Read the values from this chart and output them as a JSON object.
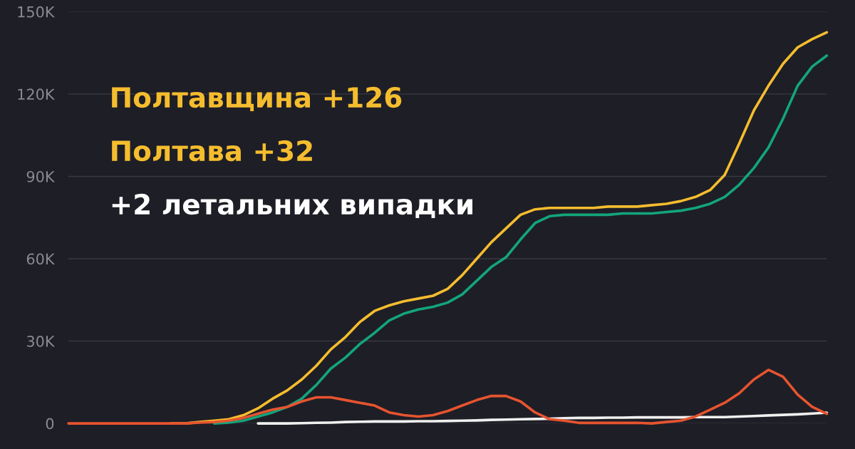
{
  "chart_data": {
    "type": "line",
    "categories": [
      null,
      null,
      null,
      null,
      null,
      null,
      null,
      null,
      null,
      null,
      null,
      null,
      null,
      null,
      null,
      null,
      null,
      null,
      null,
      null,
      null,
      null,
      null,
      null,
      null,
      null,
      null,
      null,
      null,
      null,
      null,
      null,
      null,
      null,
      null,
      null,
      null,
      null,
      null,
      null,
      null,
      null,
      null,
      null,
      null,
      null,
      null,
      null,
      null,
      null,
      null,
      null,
      null
    ],
    "series": [
      {
        "color": "#f5bd2e",
        "values": [
          null,
          null,
          null,
          null,
          null,
          null,
          null,
          0,
          0,
          500,
          1000,
          1500,
          3000,
          5500,
          9000,
          12000,
          16000,
          21000,
          27000,
          31500,
          37000,
          41000,
          43000,
          44500,
          45500,
          46500,
          49000,
          54000,
          60000,
          66000,
          71000,
          76000,
          78000,
          78500,
          78500,
          78500,
          78500,
          79000,
          79000,
          79000,
          79500,
          80000,
          81000,
          82500,
          85000,
          90500,
          102000,
          114000,
          123000,
          131000,
          137000,
          140000,
          142500
        ]
      },
      {
        "color": "#13a57c",
        "values": [
          null,
          null,
          null,
          null,
          null,
          null,
          null,
          null,
          null,
          null,
          0,
          300,
          1000,
          2500,
          4000,
          6000,
          9000,
          14000,
          20000,
          24000,
          29000,
          33000,
          37500,
          40000,
          41500,
          42500,
          44000,
          47000,
          52000,
          57000,
          60500,
          67000,
          73000,
          75500,
          76000,
          76000,
          76000,
          76000,
          76500,
          76500,
          76500,
          77000,
          77500,
          78500,
          80000,
          82500,
          87000,
          93000,
          100500,
          111000,
          123000,
          130000,
          134000
        ]
      },
      {
        "color": "#e6542f",
        "values": [
          0,
          0,
          0,
          0,
          0,
          0,
          0,
          0,
          0,
          300,
          500,
          1000,
          2000,
          3500,
          5000,
          6000,
          8000,
          9500,
          9500,
          8500,
          7500,
          6500,
          4000,
          3000,
          2500,
          3000,
          4500,
          6500,
          8500,
          10000,
          10000,
          8000,
          4000,
          1500,
          1000,
          200,
          200,
          200,
          200,
          200,
          0,
          500,
          1000,
          2500,
          5000,
          7500,
          11000,
          16000,
          19500,
          17000,
          10500,
          6000,
          3500
        ]
      },
      {
        "color": "#f0f0f0",
        "values": [
          null,
          null,
          null,
          null,
          null,
          null,
          null,
          null,
          null,
          null,
          null,
          null,
          null,
          0,
          0,
          0,
          100,
          200,
          300,
          500,
          600,
          700,
          700,
          700,
          800,
          800,
          900,
          1000,
          1100,
          1300,
          1400,
          1500,
          1600,
          1700,
          1900,
          2000,
          2000,
          2100,
          2100,
          2200,
          2200,
          2200,
          2200,
          2300,
          2300,
          2300,
          2500,
          2700,
          2900,
          3100,
          3300,
          3600,
          3900
        ]
      }
    ],
    "ylim": [
      0,
      150000
    ],
    "yticks": [
      {
        "value": 0,
        "label": "0"
      },
      {
        "value": 30000,
        "label": "30K"
      },
      {
        "value": 60000,
        "label": "60K"
      },
      {
        "value": 90000,
        "label": "90K"
      },
      {
        "value": 120000,
        "label": "120K"
      },
      {
        "value": 150000,
        "label": "150K"
      }
    ],
    "grid": "y",
    "annotations": [
      "Полтавщина +126",
      "Полтава +32",
      "+2 летальних випадки"
    ]
  }
}
